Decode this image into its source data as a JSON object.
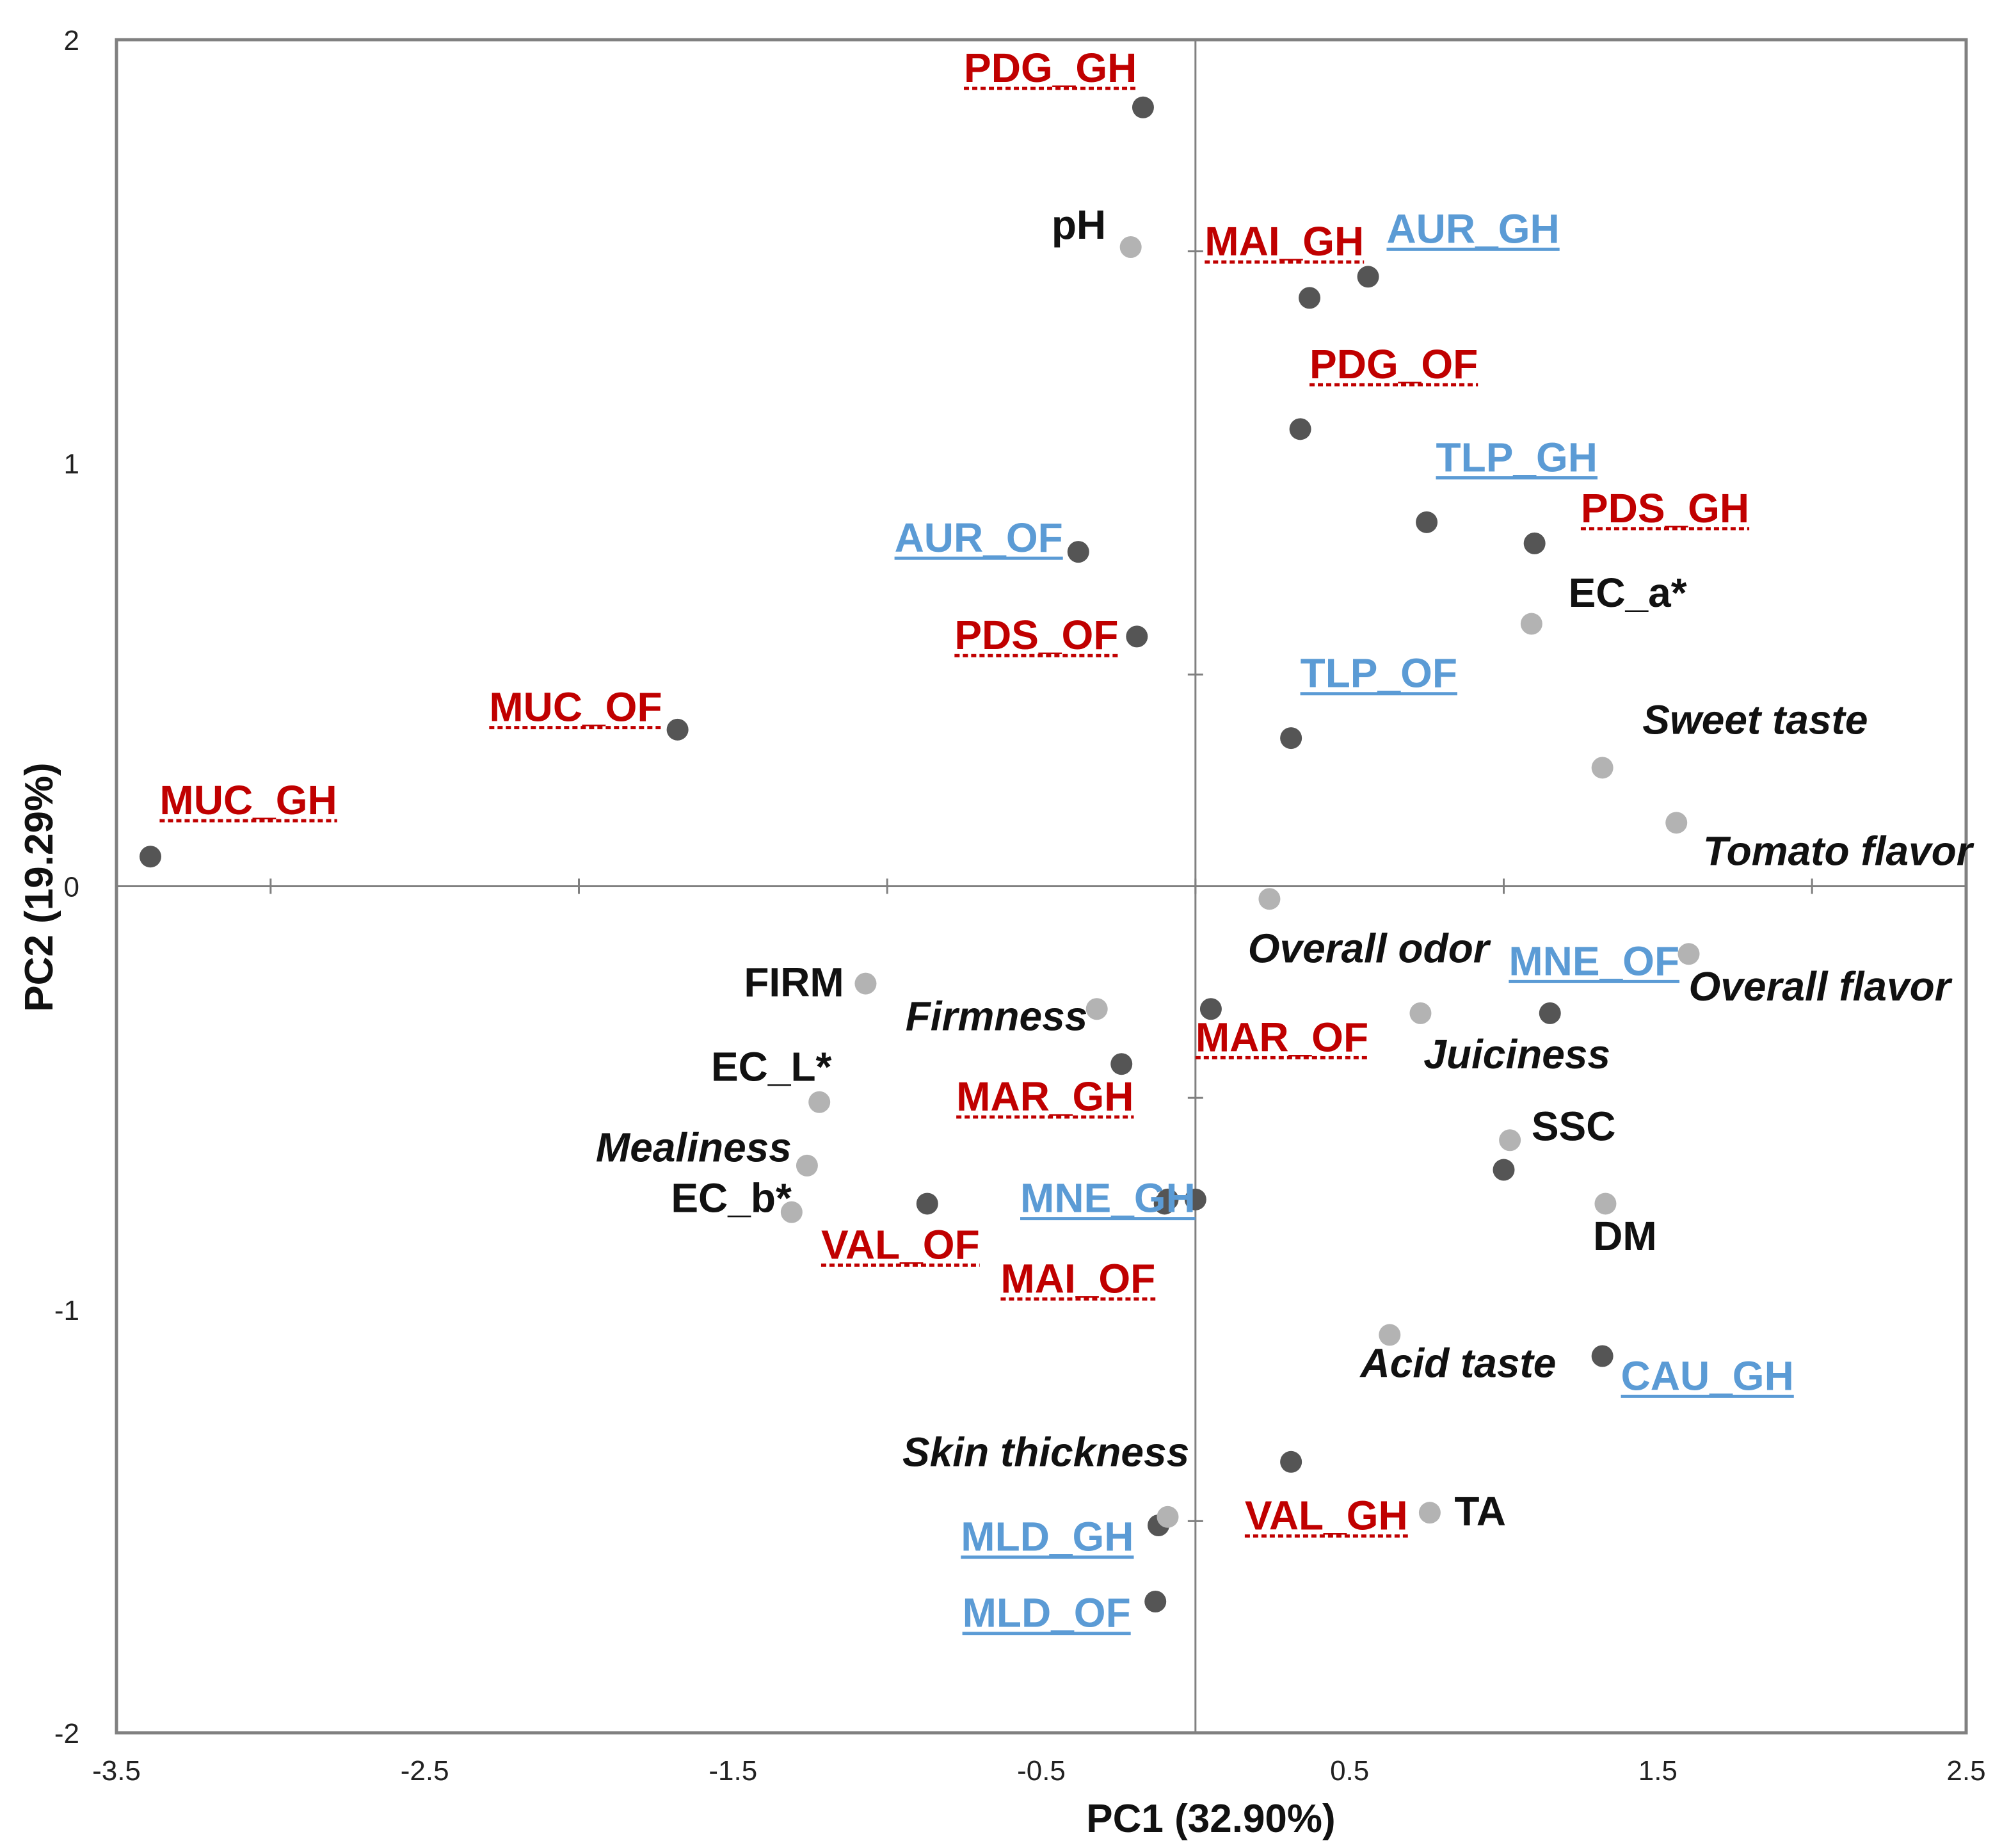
{
  "chart_data": {
    "type": "scatter",
    "title": "",
    "xlabel": "PC1 (32.90%)",
    "ylabel": "PC2 (19.29%)",
    "xlim": [
      -3.5,
      2.5
    ],
    "ylim": [
      -2,
      2
    ],
    "x_ticks": [
      -3.5,
      -2.5,
      -1.5,
      -0.5,
      0.5,
      1.5,
      2.5
    ],
    "x_tick_labels": [
      "-3.5",
      "-2.5",
      "-1.5",
      "-0.5",
      "0.5",
      "1.5",
      "2.5"
    ],
    "y_ticks": [
      -2,
      -1,
      0,
      1,
      2
    ],
    "y_tick_labels": [
      "-2",
      "-1",
      "0",
      "1",
      "2"
    ],
    "x_minor_ticks": [
      -3,
      -2,
      -1,
      0,
      1,
      2
    ],
    "y_minor_ticks": [
      -1.5,
      -0.5,
      0.5,
      1.5
    ],
    "grid": false,
    "legend": "none",
    "colors": {
      "sample_point": "#555555",
      "variable_point": "#b3b3b3",
      "red_label": "#c00000",
      "blue_label": "#5b9bd5",
      "black_label": "#111111",
      "frame": "#808080"
    },
    "series": [
      {
        "name": "samples",
        "color": "#555555",
        "points": [
          {
            "label": "PDG_GH",
            "x": -0.17,
            "y": 1.84,
            "style": "red",
            "anchor": "end",
            "dx": -0.02,
            "dy": 0.06
          },
          {
            "label": "MAI_GH",
            "x": 0.37,
            "y": 1.39,
            "style": "red",
            "anchor": "start",
            "dx": -0.34,
            "dy": 0.1
          },
          {
            "label": "AUR_GH",
            "x": 0.56,
            "y": 1.44,
            "style": "blue",
            "anchor": "start",
            "dx": 0.06,
            "dy": 0.08
          },
          {
            "label": "PDG_OF",
            "x": 0.34,
            "y": 1.08,
            "style": "red",
            "anchor": "start",
            "dx": 0.03,
            "dy": 0.12
          },
          {
            "label": "TLP_GH",
            "x": 0.75,
            "y": 0.86,
            "style": "blue",
            "anchor": "start",
            "dx": 0.03,
            "dy": 0.12
          },
          {
            "label": "PDS_GH",
            "x": 1.1,
            "y": 0.81,
            "style": "red",
            "anchor": "start",
            "dx": 0.15,
            "dy": 0.05
          },
          {
            "label": "AUR_OF",
            "x": -0.38,
            "y": 0.79,
            "style": "blue",
            "anchor": "end",
            "dx": -0.05,
            "dy": 0.0
          },
          {
            "label": "PDS_OF",
            "x": -0.19,
            "y": 0.59,
            "style": "red",
            "anchor": "end",
            "dx": -0.06,
            "dy": -0.03
          },
          {
            "label": "MUC_OF",
            "x": -1.68,
            "y": 0.37,
            "style": "red",
            "anchor": "end",
            "dx": -0.05,
            "dy": 0.02
          },
          {
            "label": "TLP_OF",
            "x": 0.31,
            "y": 0.35,
            "style": "blue",
            "anchor": "start",
            "dx": 0.03,
            "dy": 0.12
          },
          {
            "label": "MUC_GH",
            "x": -3.39,
            "y": 0.07,
            "style": "red",
            "anchor": "start",
            "dx": 0.03,
            "dy": 0.1
          },
          {
            "label": "MAR_OF",
            "x": 0.05,
            "y": -0.29,
            "style": "red",
            "anchor": "start",
            "dx": -0.05,
            "dy": -0.1
          },
          {
            "label": "MNE_OF",
            "x": 1.15,
            "y": -0.3,
            "style": "blue",
            "anchor": "end",
            "dx": 0.42,
            "dy": 0.09
          },
          {
            "label": "MAR_GH",
            "x": -0.24,
            "y": -0.42,
            "style": "red",
            "anchor": "end",
            "dx": 0.04,
            "dy": -0.11
          },
          {
            "label": "SSC_pt",
            "x": 1.0,
            "y": -0.67,
            "style": "none"
          },
          {
            "label": "MNE_GH",
            "x": -0.09,
            "y": -0.74,
            "style": "blue",
            "anchor": "end",
            "dx": 0.09,
            "dy": -0.03
          },
          {
            "label": "MNE_GH_2",
            "x": 0.0,
            "y": -0.74,
            "style": "none"
          },
          {
            "label": "VAL_OF",
            "x": -0.87,
            "y": -0.75,
            "style": "red",
            "anchor": "end",
            "dx": 0.17,
            "dy": -0.13
          },
          {
            "label": "MAI_OF",
            "x": -0.1,
            "y": -0.75,
            "style": "red",
            "anchor": "end",
            "dx": -0.03,
            "dy": -0.21
          },
          {
            "label": "CAU_GH",
            "x": 1.32,
            "y": -1.11,
            "style": "blue",
            "anchor": "start",
            "dx": 0.06,
            "dy": -0.08
          },
          {
            "label": "VAL_GH",
            "x": 0.31,
            "y": -1.36,
            "style": "red",
            "anchor": "start",
            "dx": -0.15,
            "dy": -0.16
          },
          {
            "label": "MLD_GH",
            "x": -0.12,
            "y": -1.51,
            "style": "blue",
            "anchor": "end",
            "dx": -0.08,
            "dy": -0.06
          },
          {
            "label": "MLD_OF",
            "x": -0.13,
            "y": -1.69,
            "style": "blue",
            "anchor": "end",
            "dx": -0.08,
            "dy": -0.06
          }
        ]
      },
      {
        "name": "variables",
        "color": "#b3b3b3",
        "points": [
          {
            "label": "pH",
            "x": -0.21,
            "y": 1.51,
            "style": "black",
            "anchor": "end",
            "dx": -0.08,
            "dy": 0.02
          },
          {
            "label": "EC_a*",
            "x": 1.09,
            "y": 0.62,
            "style": "black",
            "anchor": "start",
            "dx": 0.12,
            "dy": 0.04
          },
          {
            "label": "Sweet taste",
            "x": 1.32,
            "y": 0.28,
            "style": "italic",
            "anchor": "start",
            "dx": 0.13,
            "dy": 0.08
          },
          {
            "label": "Tomato flavor",
            "x": 1.56,
            "y": 0.15,
            "style": "italic",
            "anchor": "end",
            "dx": 0.96,
            "dy": -0.1
          },
          {
            "label": "Overall odor",
            "x": 0.24,
            "y": -0.03,
            "style": "italic",
            "anchor": "start",
            "dx": -0.07,
            "dy": -0.15
          },
          {
            "label": "FIRM",
            "x": -1.07,
            "y": -0.23,
            "style": "black",
            "anchor": "end",
            "dx": -0.07,
            "dy": -0.03
          },
          {
            "label": "Overall flavor",
            "x": 1.6,
            "y": -0.16,
            "style": "italic",
            "anchor": "start",
            "dx": 0.0,
            "dy": -0.11
          },
          {
            "label": "Firmness",
            "x": -0.32,
            "y": -0.29,
            "style": "italic",
            "anchor": "end",
            "dx": -0.03,
            "dy": -0.05
          },
          {
            "label": "Juiciness",
            "x": 0.73,
            "y": -0.3,
            "style": "italic",
            "anchor": "start",
            "dx": 0.01,
            "dy": -0.13
          },
          {
            "label": "EC_L*",
            "x": -1.22,
            "y": -0.51,
            "style": "black",
            "anchor": "end",
            "dx": 0.04,
            "dy": 0.05
          },
          {
            "label": "SSC",
            "x": 1.02,
            "y": -0.6,
            "style": "black",
            "anchor": "start",
            "dx": 0.07,
            "dy": 0.0
          },
          {
            "label": "Mealiness",
            "x": -1.26,
            "y": -0.66,
            "style": "italic",
            "anchor": "end",
            "dx": -0.05,
            "dy": 0.01
          },
          {
            "label": "DM",
            "x": 1.33,
            "y": -0.75,
            "style": "black",
            "anchor": "start",
            "dx": -0.04,
            "dy": -0.11
          },
          {
            "label": "EC_b*",
            "x": -1.31,
            "y": -0.77,
            "style": "black",
            "anchor": "end",
            "dx": 0.0,
            "dy": 0.0
          },
          {
            "label": "Acid taste",
            "x": 0.63,
            "y": -1.06,
            "style": "italic",
            "anchor": "end",
            "dx": 0.54,
            "dy": -0.1
          },
          {
            "label": "Skin thickness",
            "x": -0.09,
            "y": -1.49,
            "style": "italic",
            "anchor": "end",
            "dx": 0.07,
            "dy": 0.12
          },
          {
            "label": "TA",
            "x": 0.76,
            "y": -1.48,
            "style": "black",
            "anchor": "start",
            "dx": 0.08,
            "dy": -0.03
          }
        ]
      }
    ]
  }
}
